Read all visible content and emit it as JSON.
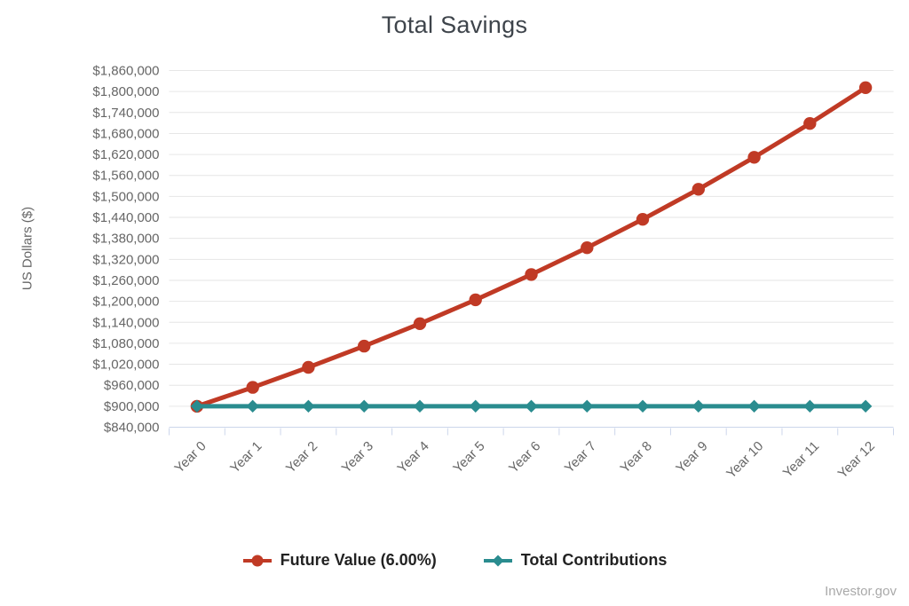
{
  "page": {
    "background": "#ffffff",
    "watermark": "Investor.gov"
  },
  "style": {
    "gridline_color": "#e6e6e6",
    "axis_line_color": "#ccd6eb",
    "tick_label_color": "#666666",
    "title_color": "#3e444b",
    "legend_text_color": "#222222",
    "watermark_color": "#a9a9a9"
  },
  "chart_data": {
    "type": "line",
    "title": "Total Savings",
    "xlabel": "",
    "ylabel": "US Dollars ($)",
    "categories": [
      "Year 0",
      "Year 1",
      "Year 2",
      "Year 3",
      "Year 4",
      "Year 5",
      "Year 6",
      "Year 7",
      "Year 8",
      "Year 9",
      "Year 10",
      "Year 11",
      "Year 12"
    ],
    "series": [
      {
        "name": "Future Value (6.00%)",
        "color": "#c03a25",
        "marker": "circle",
        "values": [
          900000,
          954000,
          1011240,
          1071914,
          1136229,
          1204403,
          1276667,
          1353267,
          1434463,
          1520531,
          1611763,
          1708469,
          1810977
        ]
      },
      {
        "name": "Total Contributions",
        "color": "#2a8c8f",
        "marker": "diamond",
        "values": [
          900000,
          900000,
          900000,
          900000,
          900000,
          900000,
          900000,
          900000,
          900000,
          900000,
          900000,
          900000,
          900000
        ]
      }
    ],
    "ylim": [
      840000,
      1860000
    ],
    "y_tick_step": 60000,
    "y_tick_labels": [
      "$840,000",
      "$900,000",
      "$960,000",
      "$1,020,000",
      "$1,080,000",
      "$1,140,000",
      "$1,200,000",
      "$1,260,000",
      "$1,320,000",
      "$1,380,000",
      "$1,440,000",
      "$1,500,000",
      "$1,560,000",
      "$1,620,000",
      "$1,680,000",
      "$1,740,000",
      "$1,800,000",
      "$1,860,000"
    ],
    "grid": true,
    "legend_position": "bottom"
  }
}
